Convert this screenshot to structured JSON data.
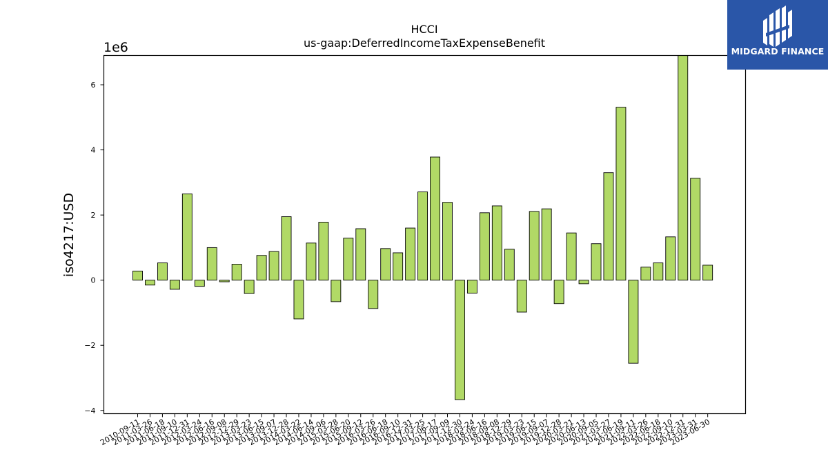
{
  "chart_data": {
    "type": "bar",
    "title": "HCCI",
    "subtitle": "us-gaap:DeferredIncomeTaxExpenseBenefit",
    "xlabel": "",
    "ylabel": "iso4217:USD",
    "scale_label": "1e6",
    "ylim": [
      -4.1,
      6.9
    ],
    "yticks": [
      -4,
      -2,
      0,
      2,
      4,
      6
    ],
    "ytick_labels": [
      "−4",
      "−2",
      "0",
      "2",
      "4",
      "6"
    ],
    "bar_color": "#b1d966",
    "edge_color": "#000000",
    "categories": [
      "2010-09-11",
      "2011-03-26",
      "2011-06-18",
      "2011-09-10",
      "2011-12-31",
      "2012-03-24",
      "2012-06-16",
      "2012-09-08",
      "2012-12-29",
      "2013-03-23",
      "2013-06-15",
      "2013-09-07",
      "2013-12-28",
      "2014-03-22",
      "2014-06-14",
      "2014-09-06",
      "2015-03-28",
      "2015-06-20",
      "2015-09-12",
      "2016-03-26",
      "2016-06-18",
      "2016-09-10",
      "2016-12-31",
      "2017-03-25",
      "2017-06-17",
      "2017-09-09",
      "2017-12-30",
      "2018-03-24",
      "2018-06-16",
      "2018-09-08",
      "2018-12-29",
      "2019-03-23",
      "2019-06-15",
      "2019-09-07",
      "2019-12-28",
      "2020-03-21",
      "2020-06-13",
      "2020-09-05",
      "2021-03-27",
      "2021-06-19",
      "2021-09-11",
      "2022-03-26",
      "2022-06-18",
      "2022-09-10",
      "2022-12-31",
      "2023-03-31",
      "2023-06-30"
    ],
    "values": [
      0.28,
      -0.15,
      0.53,
      -0.28,
      2.65,
      -0.19,
      1.0,
      -0.05,
      0.49,
      -0.41,
      0.76,
      0.88,
      1.95,
      -1.19,
      1.14,
      1.78,
      -0.66,
      1.29,
      1.58,
      -0.87,
      0.97,
      0.84,
      1.6,
      2.71,
      3.78,
      2.39,
      -3.67,
      -0.4,
      2.07,
      2.28,
      0.95,
      -0.98,
      2.11,
      2.19,
      -0.72,
      1.45,
      -0.11,
      1.12,
      3.3,
      5.31,
      -2.55,
      0.4,
      0.53,
      1.33,
      6.9,
      3.13,
      0.46
    ]
  },
  "logo": {
    "text": "MIDGARD FINANCE",
    "bg_color": "#2a56a8",
    "icon": "midgard-logo-icon"
  }
}
